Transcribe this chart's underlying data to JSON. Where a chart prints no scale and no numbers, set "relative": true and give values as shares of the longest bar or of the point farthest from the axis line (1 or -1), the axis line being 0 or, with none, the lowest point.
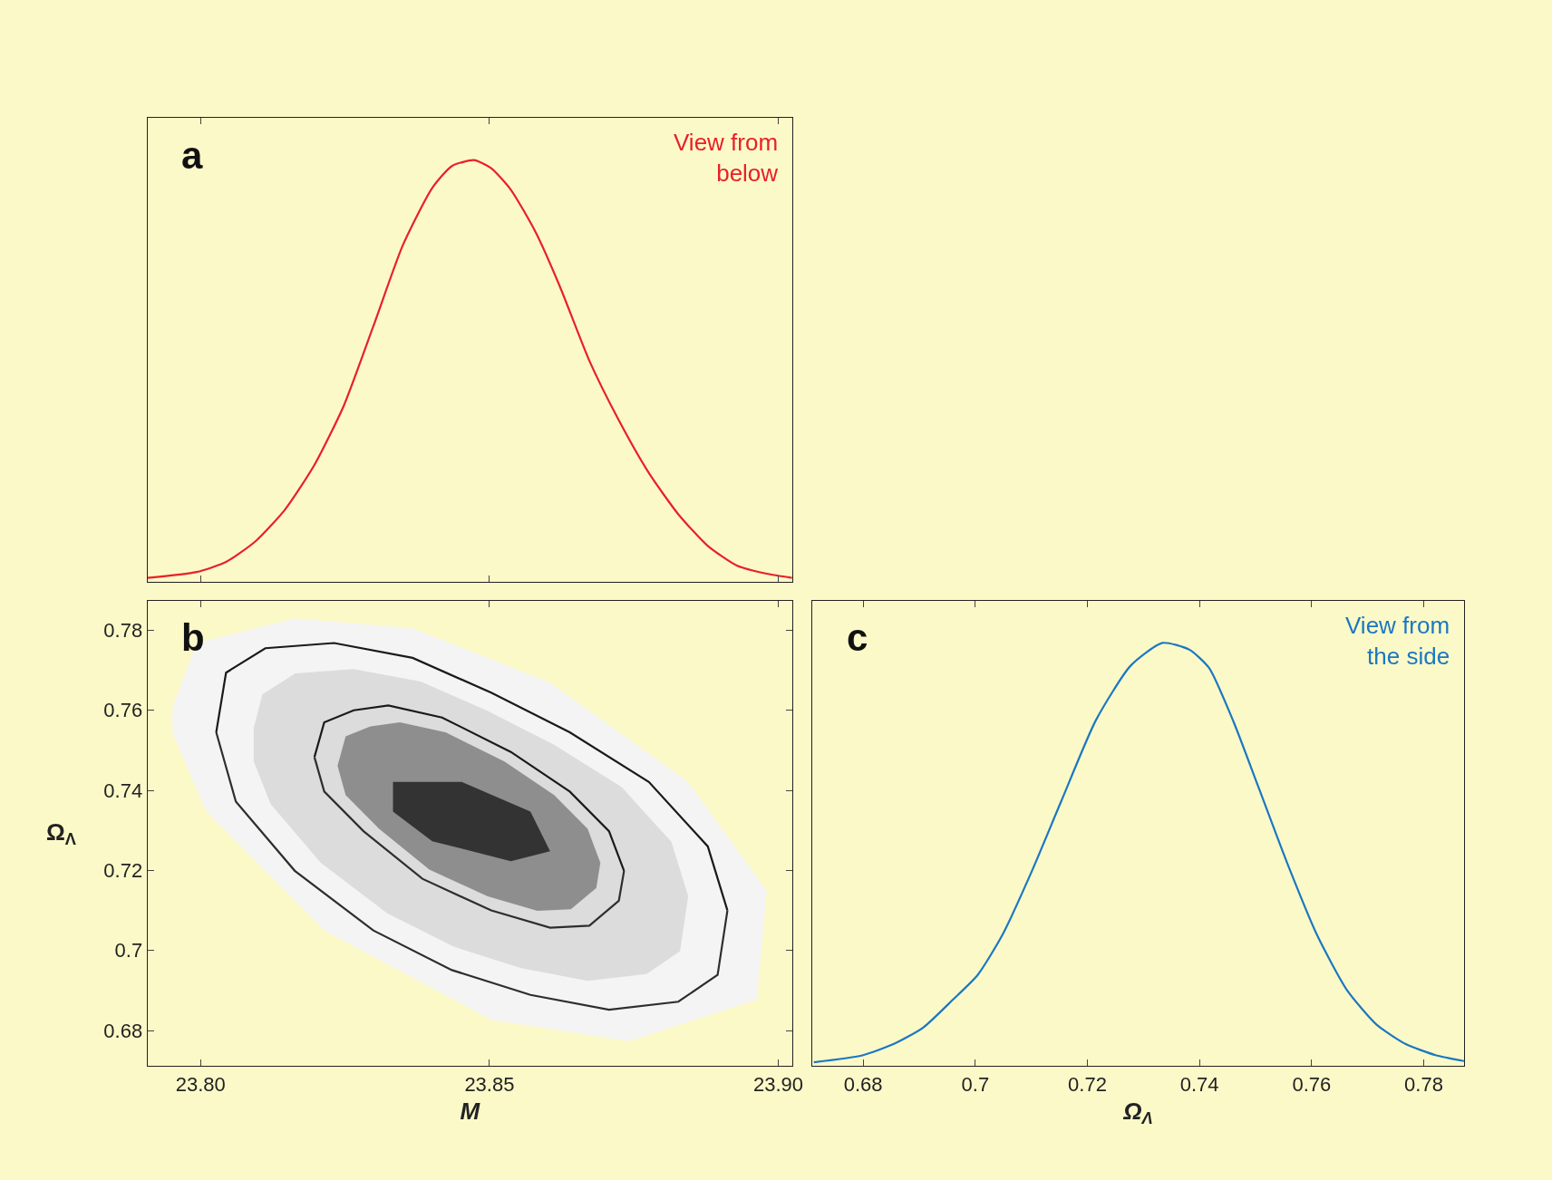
{
  "chart_data": [
    {
      "type": "line",
      "relative": true,
      "xlim": [
        23.7908,
        23.9024
      ],
      "xticks": [
        {
          "value": 23.8,
          "label": null
        },
        {
          "value": 23.85,
          "label": null
        },
        {
          "value": 23.9,
          "label": null
        }
      ],
      "tick_labels": false,
      "annotations": [
        "a",
        "View from\nbelow"
      ],
      "x": [
        23.7908,
        23.7993,
        23.8044,
        23.8095,
        23.8146,
        23.8197,
        23.8248,
        23.8299,
        23.835,
        23.8401,
        23.8435,
        23.8473,
        23.8503,
        23.8537,
        23.858,
        23.8622,
        23.8673,
        23.8724,
        23.8776,
        23.8827,
        23.8878,
        23.8929,
        23.898,
        23.9024
      ],
      "series": [
        {
          "color": "#e8202a",
          "values": [
            0.009,
            0.023,
            0.047,
            0.096,
            0.171,
            0.277,
            0.418,
            0.606,
            0.798,
            0.934,
            0.986,
            1.0,
            0.981,
            0.93,
            0.829,
            0.7,
            0.524,
            0.383,
            0.258,
            0.16,
            0.085,
            0.038,
            0.019,
            0.009
          ]
        }
      ]
    },
    {
      "type": "line",
      "xlabel": "M",
      "ylabel": "Ω$_{Λ}$",
      "xlim": [
        23.7908,
        23.9024
      ],
      "ylim": [
        0.6711,
        0.7874
      ],
      "xticks": [
        {
          "value": 23.8,
          "label": "23.80"
        },
        {
          "value": 23.85,
          "label": "23.85"
        },
        {
          "value": 23.9,
          "label": "23.90"
        }
      ],
      "yticks": [
        0.68,
        {
          "value": 0.7,
          "label": "0.7"
        },
        0.72,
        0.74,
        0.76,
        0.78
      ],
      "annotations": [
        "b"
      ],
      "series": [
        {
          "type": "area",
          "color": "#f4f4f4",
          "x": [
            23.7951,
            23.7993,
            23.8163,
            23.8367,
            23.8605,
            23.8844,
            23.898,
            23.8963,
            23.8741,
            23.8503,
            23.8214,
            23.801,
            23.7951,
            23.7951
          ],
          "values": [
            0.7607,
            0.7768,
            0.783,
            0.7805,
            0.7669,
            0.7421,
            0.7149,
            0.6877,
            0.6773,
            0.6827,
            0.705,
            0.7347,
            0.7545,
            0.7607
          ]
        },
        {
          "type": "area",
          "color": "#dcdcdc",
          "x": [
            23.8092,
            23.8107,
            23.8164,
            23.8265,
            23.8381,
            23.8497,
            23.8612,
            23.8729,
            23.8815,
            23.8844,
            23.883,
            23.8772,
            23.867,
            23.8555,
            23.8439,
            23.8323,
            23.8208,
            23.8121,
            23.8092,
            23.8092
          ],
          "values": [
            0.7556,
            0.764,
            0.7692,
            0.7703,
            0.7672,
            0.7598,
            0.7514,
            0.7408,
            0.7271,
            0.7135,
            0.6998,
            0.6941,
            0.6924,
            0.6956,
            0.7009,
            0.7093,
            0.7219,
            0.7366,
            0.7472,
            0.7556
          ]
        },
        {
          "type": "area",
          "color": "#8e8e8e",
          "x": [
            23.8237,
            23.8251,
            23.8294,
            23.8345,
            23.8424,
            23.8526,
            23.8612,
            23.867,
            23.8692,
            23.8685,
            23.8641,
            23.8583,
            23.8497,
            23.8396,
            23.8309,
            23.8251,
            23.8237
          ],
          "values": [
            0.7461,
            0.7535,
            0.756,
            0.757,
            0.7545,
            0.7472,
            0.7388,
            0.7304,
            0.7219,
            0.7156,
            0.7103,
            0.7099,
            0.7135,
            0.7202,
            0.7304,
            0.7388,
            0.7461
          ]
        },
        {
          "type": "area",
          "color": "#333333",
          "x": [
            23.8333,
            23.8452,
            23.8571,
            23.8605,
            23.8537,
            23.8401,
            23.8333,
            23.8333
          ],
          "values": [
            0.7421,
            0.7421,
            0.7347,
            0.7248,
            0.7223,
            0.7273,
            0.7347,
            0.7421
          ]
        },
        {
          "type": "line",
          "color": "#1a1a1a",
          "x": [
            23.8027,
            23.8044,
            23.8112,
            23.8231,
            23.8367,
            23.8503,
            23.8639,
            23.8776,
            23.8878,
            23.8912
          ],
          "values": [
            0.7545,
            0.7694,
            0.7755,
            0.7768,
            0.7731,
            0.7644,
            0.7545,
            0.7421,
            0.726,
            0.71
          ]
        },
        {
          "type": "line",
          "color": "#2e2e2e",
          "x": [
            23.8027,
            23.8061,
            23.8163,
            23.8299,
            23.8435,
            23.8571,
            23.8707,
            23.8827,
            23.8895,
            23.8912
          ],
          "values": [
            0.7545,
            0.7372,
            0.7199,
            0.705,
            0.6951,
            0.6889,
            0.6852,
            0.6872,
            0.6939,
            0.71
          ]
        },
        {
          "type": "line",
          "color": "#1a1a1a",
          "x": [
            23.8197,
            23.8214,
            23.8265,
            23.8325,
            23.8418,
            23.8537,
            23.8639,
            23.8707,
            23.8733
          ],
          "values": [
            0.7483,
            0.757,
            0.76,
            0.7612,
            0.7582,
            0.7496,
            0.7397,
            0.7298,
            0.7199
          ]
        },
        {
          "type": "line",
          "color": "#2e2e2e",
          "x": [
            23.8197,
            23.8214,
            23.8282,
            23.8384,
            23.8503,
            23.8605,
            23.8673,
            23.8724,
            23.8733
          ],
          "values": [
            0.7483,
            0.7397,
            0.7298,
            0.7179,
            0.71,
            0.7057,
            0.7062,
            0.7124,
            0.7199
          ]
        }
      ]
    },
    {
      "type": "line",
      "relative": true,
      "xlabel": "Ω$_{Λ}$",
      "xlim": [
        0.6709,
        0.7872
      ],
      "xticks": [
        0.68,
        {
          "value": 0.7,
          "label": "0.7"
        },
        0.72,
        0.74,
        0.76,
        0.78
      ],
      "tick_labels": "x",
      "annotations": [
        "c",
        "View from\nthe side"
      ],
      "x": [
        0.6712,
        0.68,
        0.6854,
        0.6907,
        0.696,
        0.7004,
        0.7048,
        0.7101,
        0.7153,
        0.7215,
        0.7277,
        0.7334,
        0.7382,
        0.7417,
        0.7461,
        0.7505,
        0.7557,
        0.761,
        0.7663,
        0.7716,
        0.7768,
        0.7821,
        0.7872
      ],
      "series": [
        {
          "color": "#1a78c2",
          "values": [
            0.009,
            0.026,
            0.052,
            0.091,
            0.157,
            0.215,
            0.309,
            0.461,
            0.625,
            0.817,
            0.946,
            1.0,
            0.984,
            0.941,
            0.813,
            0.66,
            0.478,
            0.309,
            0.18,
            0.098,
            0.052,
            0.026,
            0.012
          ]
        }
      ]
    }
  ]
}
